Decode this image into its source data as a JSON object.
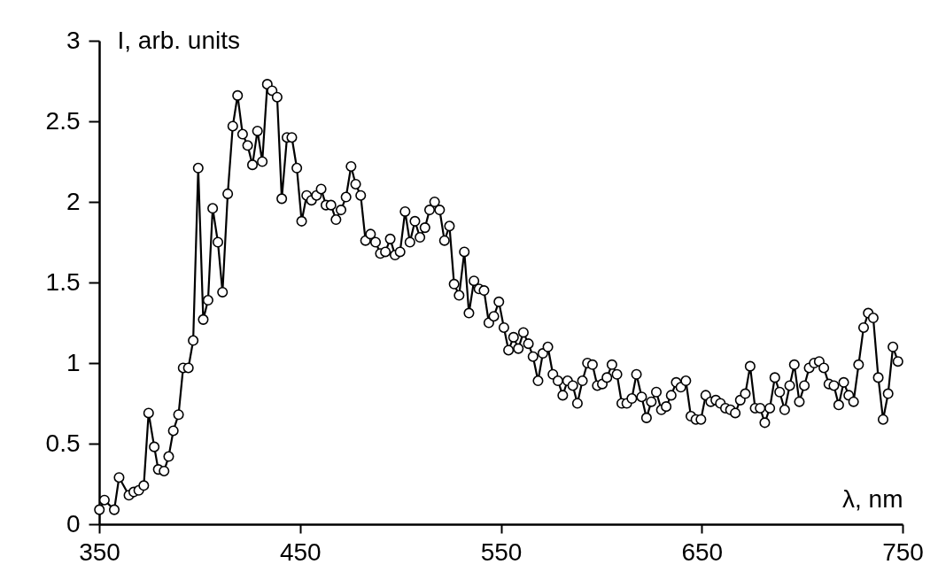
{
  "chart_data": {
    "type": "line",
    "xlabel": "λ, nm",
    "ylabel": "I, arb. units",
    "xlim": [
      350,
      750
    ],
    "xticks": [
      350,
      450,
      550,
      650,
      750
    ],
    "ylim": [
      0,
      3
    ],
    "yticks": [
      0,
      0.5,
      1,
      1.5,
      2,
      2.5,
      3
    ],
    "grid": false,
    "marker": "circle",
    "line_style": "solid",
    "series": [
      {
        "color": "#000000",
        "x": [
          350.1,
          352.6,
          357.5,
          359.9,
          364.8,
          367.2,
          369.7,
          372.2,
          374.6,
          377.4,
          379.4,
          382.3,
          384.6,
          386.9,
          389.5,
          391.8,
          394.4,
          396.8,
          399.3,
          401.8,
          404.2,
          406.5,
          409.1,
          411.4,
          414.0,
          416.5,
          418.9,
          421.4,
          423.9,
          426.3,
          428.8,
          431.2,
          433.7,
          436.1,
          438.6,
          440.9,
          443.5,
          445.9,
          448.4,
          450.8,
          453.3,
          455.7,
          458.2,
          460.5,
          462.9,
          465.4,
          467.9,
          470.4,
          472.9,
          475.4,
          477.7,
          480.2,
          482.6,
          485.1,
          487.6,
          490.0,
          492.5,
          494.9,
          497.3,
          499.8,
          502.3,
          504.7,
          507.2,
          509.7,
          512.2,
          514.5,
          517.0,
          519.5,
          521.9,
          524.4,
          526.7,
          529.2,
          531.8,
          534.1,
          536.6,
          539.1,
          541.6,
          544.0,
          546.5,
          549.0,
          551.5,
          553.8,
          556.3,
          558.7,
          561.2,
          563.7,
          566.0,
          568.5,
          570.9,
          573.4,
          575.9,
          578.4,
          580.8,
          583.2,
          585.8,
          588.1,
          590.6,
          593.1,
          595.6,
          598.0,
          600.5,
          602.8,
          605.3,
          607.8,
          610.2,
          612.7,
          615.2,
          617.5,
          620.1,
          622.5,
          624.9,
          627.4,
          629.9,
          632.3,
          634.8,
          637.3,
          639.6,
          642.1,
          644.6,
          647.1,
          649.6,
          652.0,
          654.5,
          657.0,
          659.3,
          661.8,
          664.3,
          666.7,
          669.2,
          671.7,
          674.1,
          676.6,
          679.1,
          681.4,
          683.9,
          686.4,
          688.8,
          691.3,
          693.8,
          696.1,
          698.6,
          701.1,
          703.5,
          706.0,
          708.5,
          710.8,
          713.3,
          715.8,
          718.2,
          720.7,
          723.2,
          725.6,
          728.1,
          730.6,
          732.9,
          735.4,
          737.9,
          740.3,
          742.8,
          745.2,
          747.7
        ],
        "values": [
          0.09,
          0.15,
          0.09,
          0.29,
          0.18,
          0.2,
          0.21,
          0.24,
          0.69,
          0.48,
          0.34,
          0.33,
          0.42,
          0.58,
          0.68,
          0.97,
          0.97,
          1.14,
          2.21,
          1.27,
          1.39,
          1.96,
          1.75,
          1.44,
          2.05,
          2.47,
          2.66,
          2.42,
          2.35,
          2.23,
          2.44,
          2.25,
          2.73,
          2.69,
          2.65,
          2.02,
          2.4,
          2.4,
          2.21,
          1.88,
          2.04,
          2.01,
          2.04,
          2.08,
          1.98,
          1.98,
          1.89,
          1.95,
          2.03,
          2.22,
          2.11,
          2.04,
          1.76,
          1.8,
          1.75,
          1.68,
          1.69,
          1.77,
          1.67,
          1.69,
          1.94,
          1.75,
          1.88,
          1.78,
          1.84,
          1.95,
          2.0,
          1.95,
          1.76,
          1.85,
          1.49,
          1.42,
          1.69,
          1.31,
          1.51,
          1.46,
          1.45,
          1.25,
          1.29,
          1.38,
          1.22,
          1.08,
          1.16,
          1.09,
          1.19,
          1.12,
          1.04,
          0.89,
          1.06,
          1.1,
          0.93,
          0.89,
          0.8,
          0.89,
          0.86,
          0.75,
          0.89,
          1.0,
          0.99,
          0.86,
          0.87,
          0.91,
          0.99,
          0.93,
          0.75,
          0.75,
          0.78,
          0.93,
          0.79,
          0.66,
          0.76,
          0.82,
          0.71,
          0.73,
          0.8,
          0.88,
          0.85,
          0.89,
          0.67,
          0.65,
          0.65,
          0.8,
          0.76,
          0.77,
          0.75,
          0.72,
          0.71,
          0.69,
          0.77,
          0.81,
          0.98,
          0.72,
          0.72,
          0.63,
          0.72,
          0.91,
          0.82,
          0.71,
          0.86,
          0.99,
          0.76,
          0.86,
          0.97,
          1.0,
          1.01,
          0.97,
          0.87,
          0.86,
          0.74,
          0.88,
          0.8,
          0.76,
          0.99,
          1.22,
          1.31,
          1.28,
          0.91,
          0.65,
          0.81,
          1.1,
          1.01
        ]
      }
    ]
  }
}
